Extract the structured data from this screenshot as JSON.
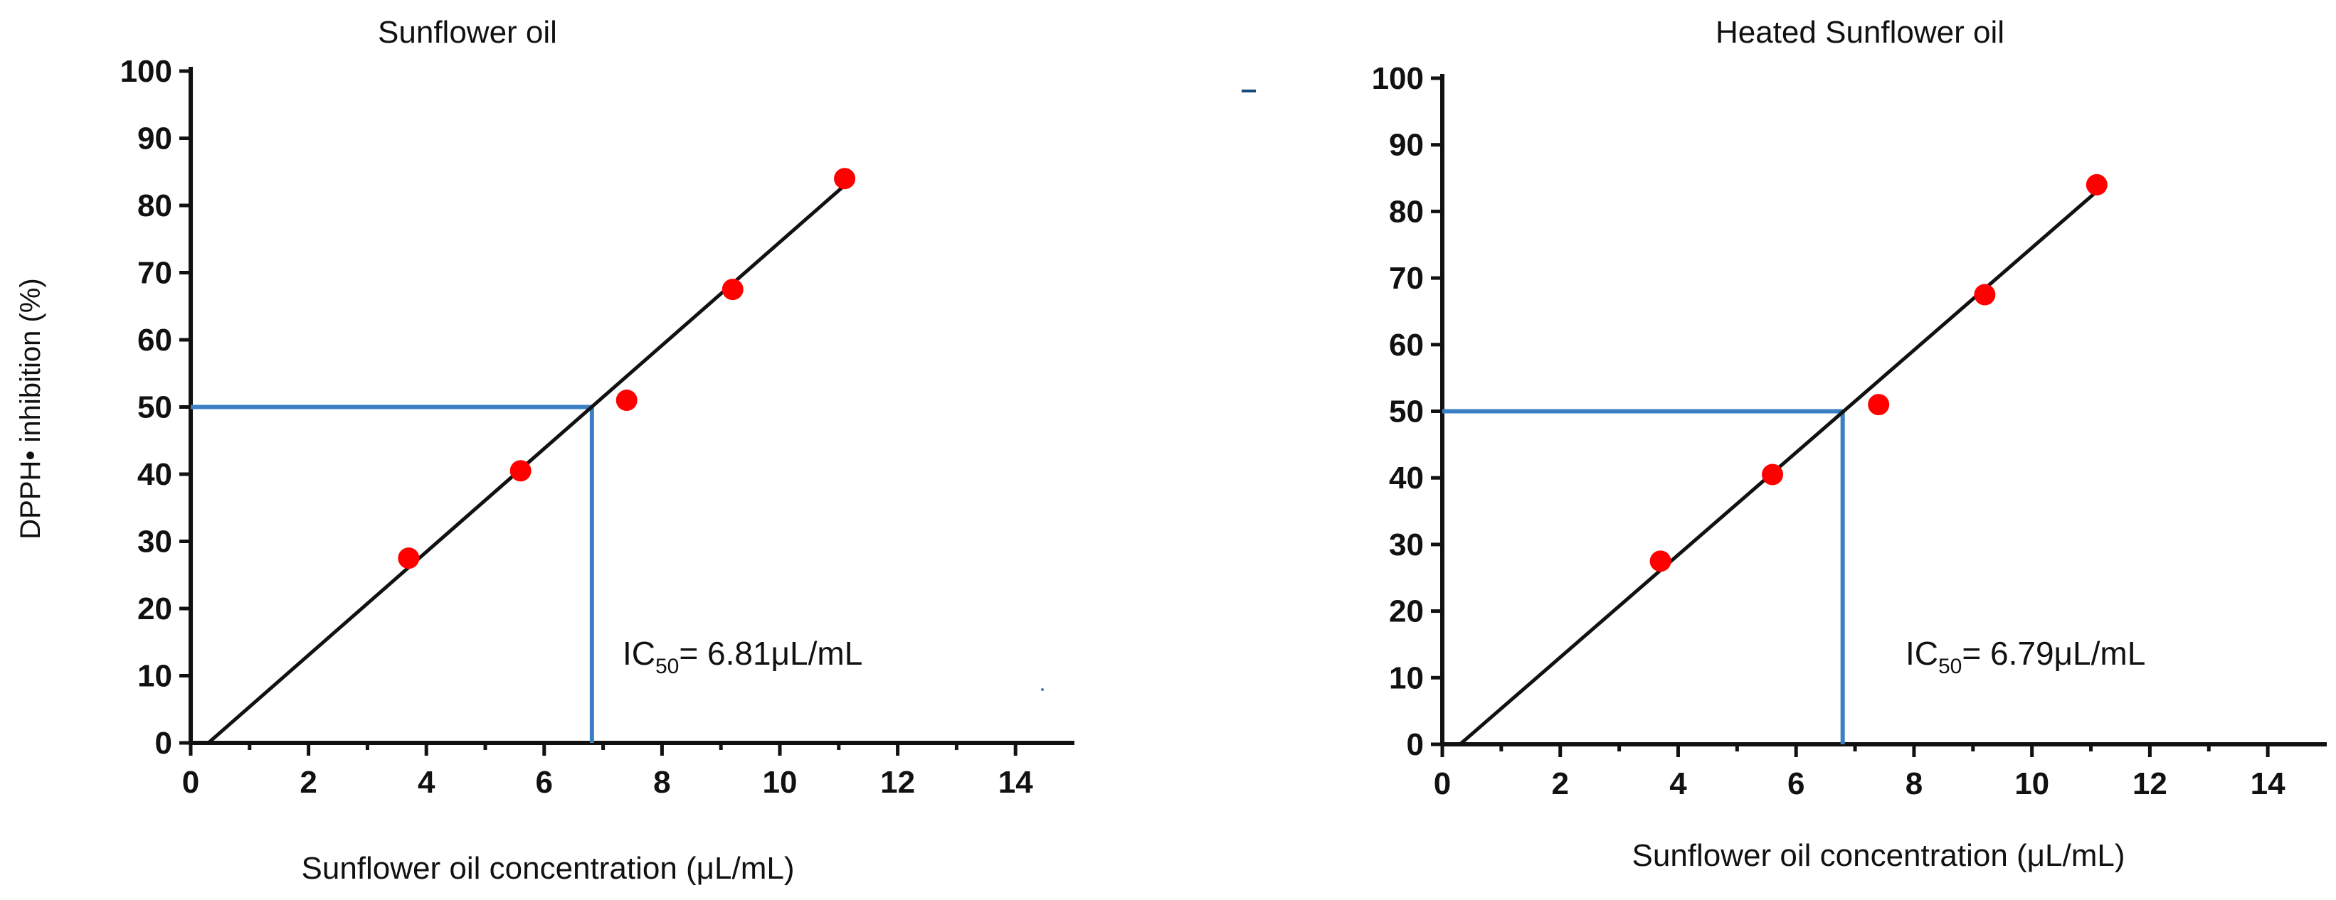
{
  "chart_data": [
    {
      "type": "scatter",
      "title": "Sunflower oil",
      "xlabel": "Sunflower oil concentration (μL/mL)",
      "ylabel": "DPPH• inhibition (%)",
      "xlim": [
        0,
        15
      ],
      "ylim": [
        0,
        100
      ],
      "x_ticks": [
        "0",
        "2",
        "4",
        "6",
        "8",
        "10",
        "12",
        "14"
      ],
      "y_ticks": [
        "0",
        "10",
        "20",
        "30",
        "40",
        "50",
        "60",
        "70",
        "80",
        "90",
        "100"
      ],
      "points": [
        {
          "x": 3.7,
          "y": 27.5
        },
        {
          "x": 5.6,
          "y": 40.5
        },
        {
          "x": 7.4,
          "y": 51.0
        },
        {
          "x": 9.2,
          "y": 67.5
        },
        {
          "x": 11.1,
          "y": 84.0
        }
      ],
      "fit_line": {
        "x0": 0.3,
        "y0": 0,
        "x1": 11.1,
        "y1": 83
      },
      "ic50": {
        "x": 6.81,
        "y": 50
      },
      "annotation": {
        "prefix": "IC",
        "sub": "50",
        "suffix": "= 6.81μL/mL"
      },
      "point_color": "#ff0000",
      "ic50_color": "#3a7fc4"
    },
    {
      "type": "scatter",
      "title": "Heated Sunflower oil",
      "xlabel": "Sunflower oil concentration (μL/mL)",
      "ylabel": "",
      "xlim": [
        0,
        15
      ],
      "ylim": [
        0,
        100
      ],
      "x_ticks": [
        "0",
        "2",
        "4",
        "6",
        "8",
        "10",
        "12",
        "14"
      ],
      "y_ticks": [
        "0",
        "10",
        "20",
        "30",
        "40",
        "50",
        "60",
        "70",
        "80",
        "90",
        "100"
      ],
      "points": [
        {
          "x": 3.7,
          "y": 27.5
        },
        {
          "x": 5.6,
          "y": 40.5
        },
        {
          "x": 7.4,
          "y": 51.0
        },
        {
          "x": 9.2,
          "y": 67.5
        },
        {
          "x": 11.1,
          "y": 84.0
        }
      ],
      "fit_line": {
        "x0": 0.3,
        "y0": 0,
        "x1": 11.1,
        "y1": 83
      },
      "ic50": {
        "x": 6.79,
        "y": 50
      },
      "annotation": {
        "prefix": "IC",
        "sub": "50",
        "suffix": "= 6.79μL/mL"
      },
      "point_color": "#ff0000",
      "ic50_color": "#3a7fc4"
    }
  ]
}
